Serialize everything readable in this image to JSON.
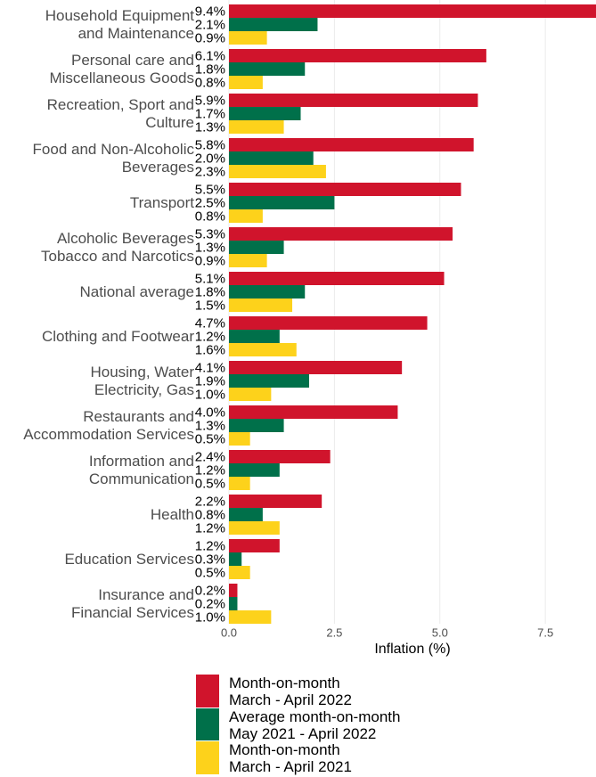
{
  "chart_data": {
    "type": "bar",
    "orientation": "horizontal",
    "x_axis_label": "Inflation (%)",
    "categories": [
      "Household Equipment\nand Maintenance",
      "Personal care and\nMiscellaneous Goods",
      "Recreation, Sport and\nCulture",
      "Food and Non-Alcoholic\nBeverages",
      "Transport",
      "Alcoholic Beverages\nTobacco and Narcotics",
      "National average",
      "Clothing and Footwear",
      "Housing, Water\nElectricity, Gas",
      "Restaurants and\nAccommodation Services",
      "Information and\nCommunication",
      "Health",
      "Education Services",
      "Insurance and\nFinancial Services"
    ],
    "series": [
      {
        "name": "Month-on-month\nMarch - April 2022",
        "color": "#d0142c",
        "values": [
          9.4,
          6.1,
          5.9,
          5.8,
          5.5,
          5.3,
          5.1,
          4.7,
          4.1,
          4.0,
          2.4,
          2.2,
          1.2,
          0.2
        ],
        "value_labels": [
          "9.4%",
          "6.1%",
          "5.9%",
          "5.8%",
          "5.5%",
          "5.3%",
          "5.1%",
          "4.7%",
          "4.1%",
          "4.0%",
          "2.4%",
          "2.2%",
          "1.2%",
          "0.2%"
        ]
      },
      {
        "name": "Average month-on-month\nMay 2021 - April 2022",
        "color": "#00704a",
        "values": [
          2.1,
          1.8,
          1.7,
          2.0,
          2.5,
          1.3,
          1.8,
          1.2,
          1.9,
          1.3,
          1.2,
          0.8,
          0.3,
          0.2
        ],
        "value_labels": [
          "2.1%",
          "1.8%",
          "1.7%",
          "2.0%",
          "2.5%",
          "1.3%",
          "1.8%",
          "1.2%",
          "1.9%",
          "1.3%",
          "1.2%",
          "0.8%",
          "0.3%",
          "0.2%"
        ]
      },
      {
        "name": "Month-on-month\nMarch - April 2021",
        "color": "#fdd21b",
        "values": [
          0.9,
          0.8,
          1.3,
          2.3,
          0.8,
          0.9,
          1.5,
          1.6,
          1.0,
          0.5,
          0.5,
          1.2,
          0.5,
          1.0
        ],
        "value_labels": [
          "0.9%",
          "0.8%",
          "1.3%",
          "2.3%",
          "0.8%",
          "0.9%",
          "1.5%",
          "1.6%",
          "1.0%",
          "0.5%",
          "0.5%",
          "1.2%",
          "0.5%",
          "1.0%"
        ]
      }
    ],
    "xlim": [
      0,
      8.7
    ],
    "xticks": [
      {
        "value": 0,
        "label": "0.0"
      },
      2.5,
      {
        "value": 5,
        "label": "5.0"
      },
      7.5
    ],
    "grid": true,
    "legend": "bottom"
  }
}
